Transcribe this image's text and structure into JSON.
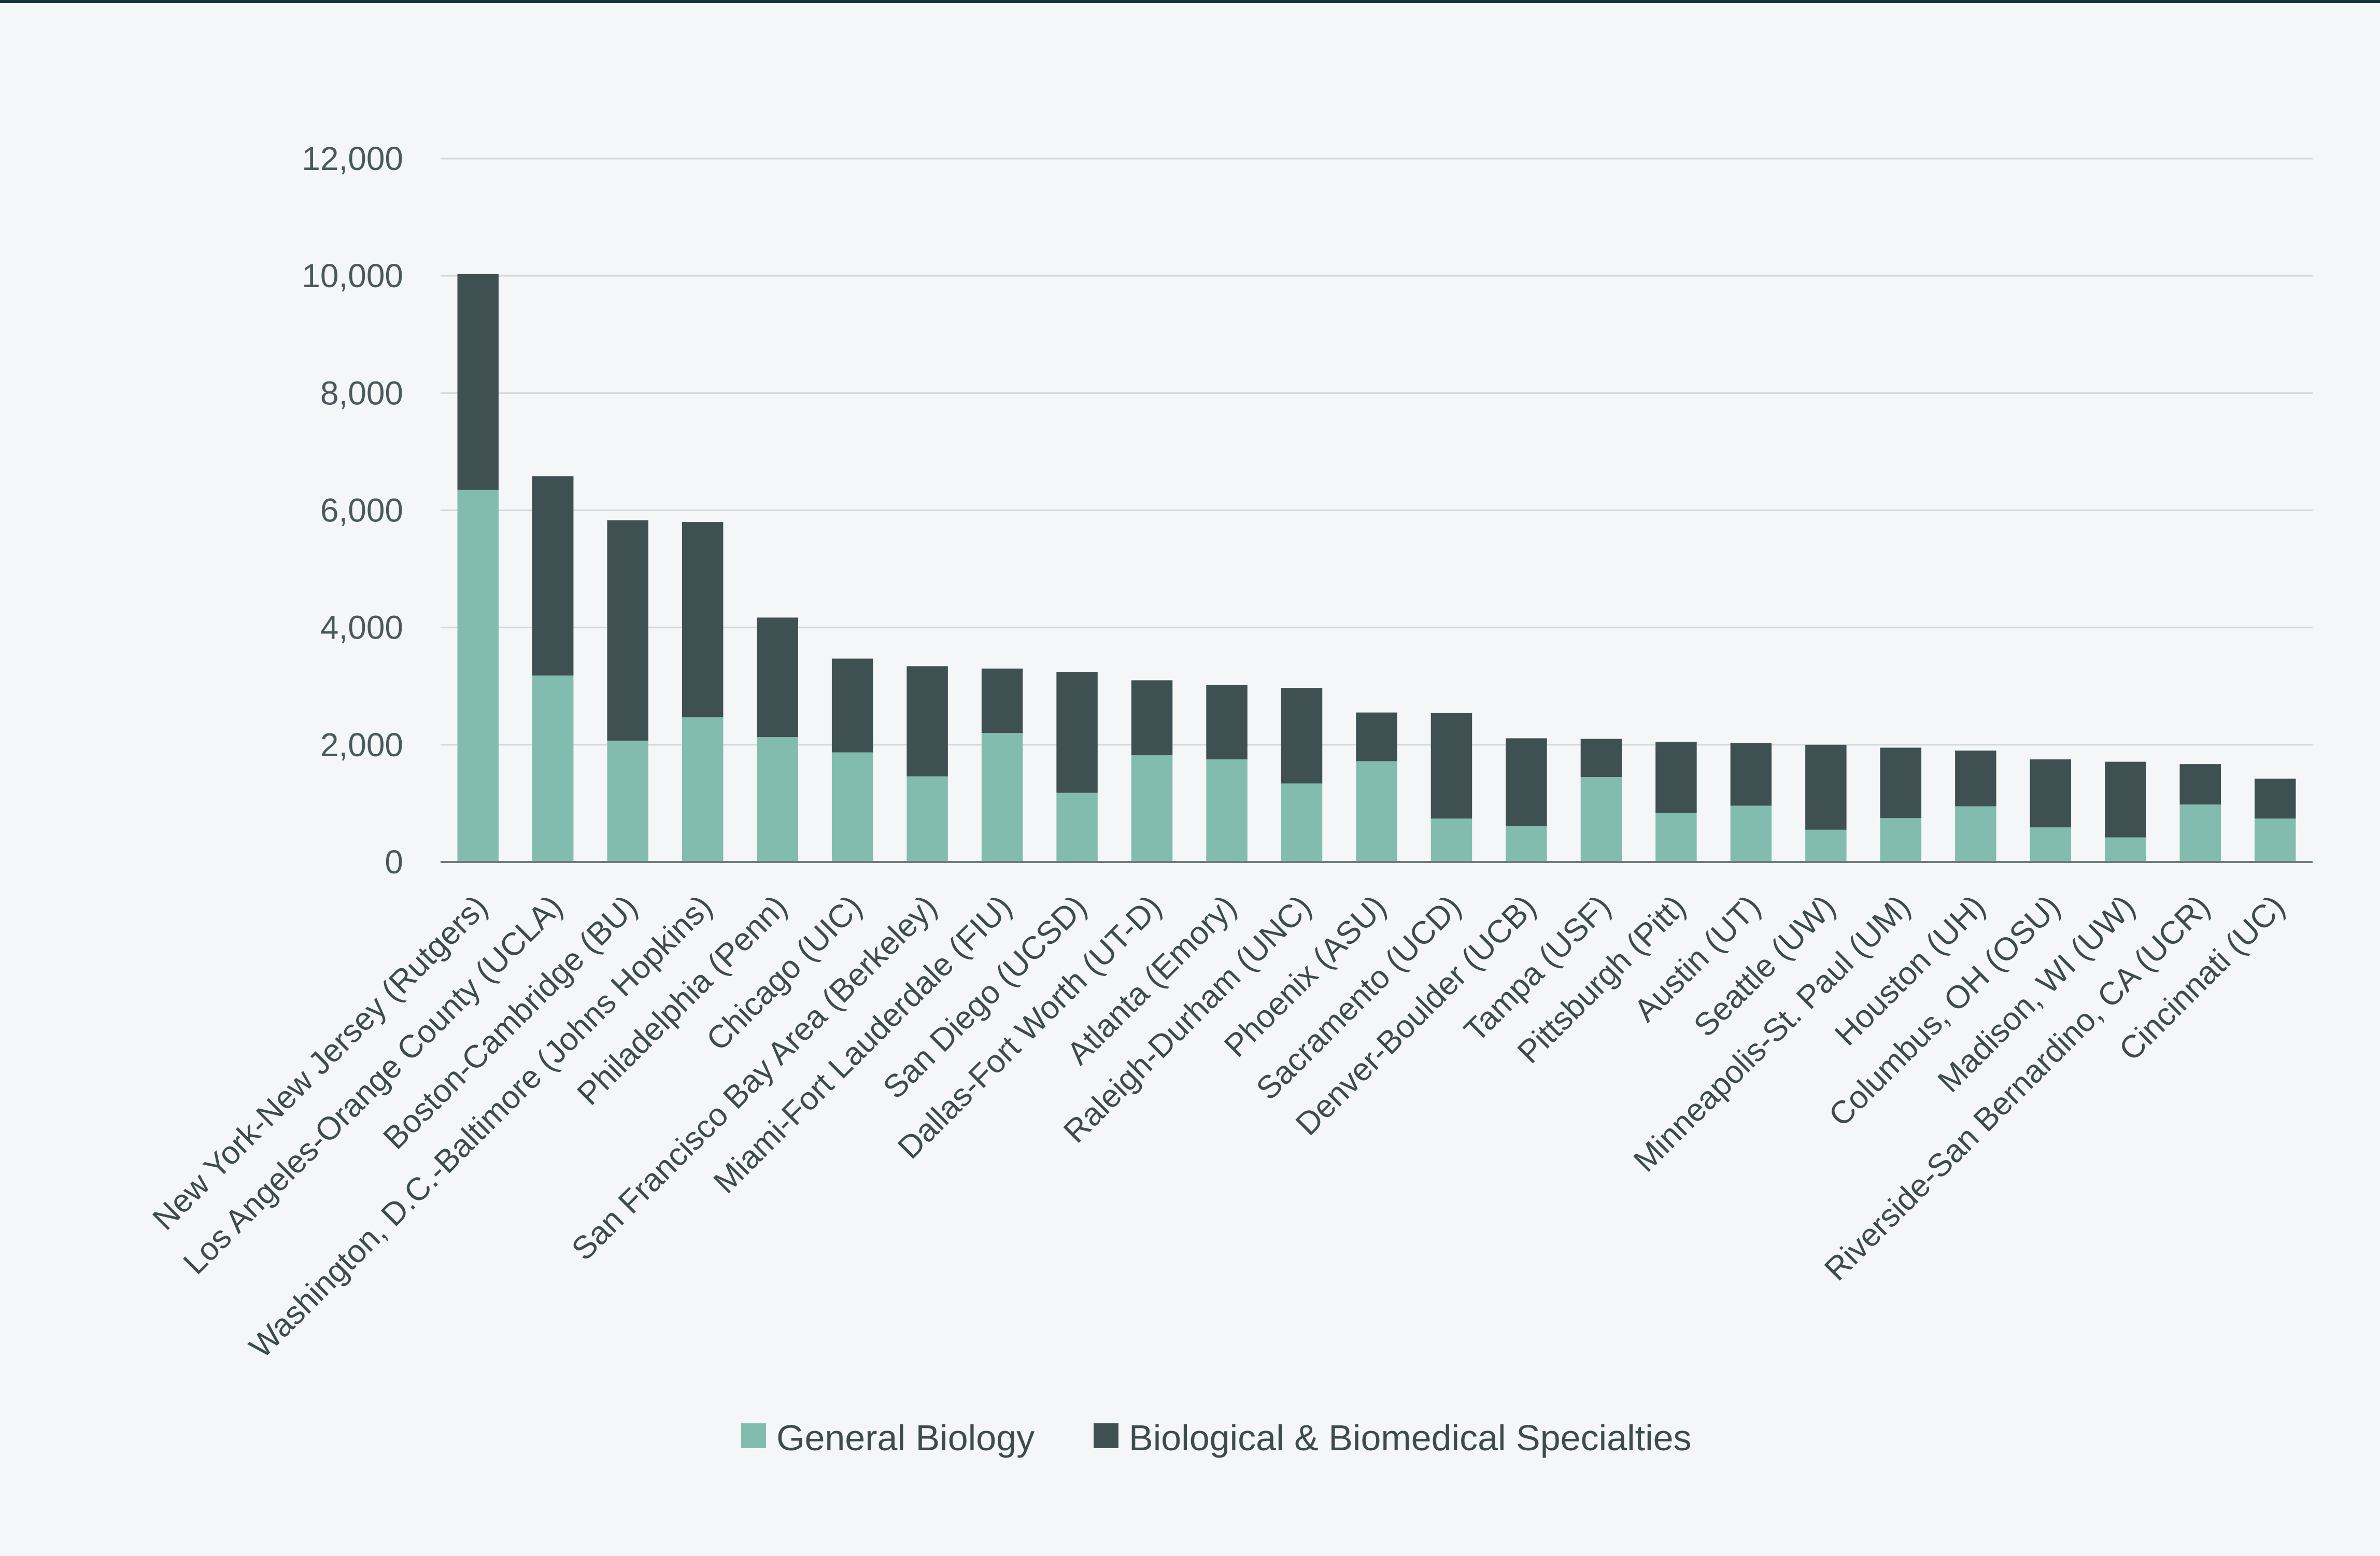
{
  "chart_data": {
    "type": "bar",
    "stacked": true,
    "categories": [
      "New York-New Jersey (Rutgers)",
      "Los Angeles-Orange County (UCLA)",
      "Boston-Cambridge (BU)",
      "Washington, D.C.-Baltimore (Johns Hopkins)",
      "Philadelphia (Penn)",
      "Chicago (UIC)",
      "San Francisco Bay Area (Berkeley)",
      "Miami-Fort Lauderdale (FIU)",
      "San Diego (UCSD)",
      "Dallas-Fort Worth (UT-D)",
      "Atlanta (Emory)",
      "Raleigh-Durham (UNC)",
      "Phoenix (ASU)",
      "Sacramento (UCD)",
      "Denver-Boulder (UCB)",
      "Tampa (USF)",
      "Pittsburgh (Pitt)",
      "Austin (UT)",
      "Seattle (UW)",
      "Minneapolis-St. Paul (UM)",
      "Houston (UH)",
      "Columbus, OH (OSU)",
      "Madison, WI (UW)",
      "Riverside-San Bernardino, CA (UCR)",
      "Cincinnati (UC)"
    ],
    "series": [
      {
        "name": "General Biology",
        "color": "#82bcae",
        "values": [
          6350,
          3180,
          2070,
          2470,
          2130,
          1870,
          1460,
          2200,
          1180,
          1820,
          1750,
          1340,
          1720,
          740,
          610,
          1450,
          840,
          960,
          550,
          750,
          950,
          590,
          420,
          980,
          740
        ]
      },
      {
        "name": "Biological & Biomedical Specialties",
        "color": "#3f5052",
        "values": [
          3680,
          3400,
          3760,
          3330,
          2040,
          1600,
          1880,
          1100,
          2060,
          1280,
          1270,
          1630,
          830,
          1800,
          1500,
          650,
          1210,
          1070,
          1450,
          1200,
          950,
          1160,
          1290,
          690,
          680
        ]
      }
    ],
    "y_ticks": [
      "0",
      "2,000",
      "4,000",
      "6,000",
      "8,000",
      "10,000",
      "12,000"
    ],
    "ylim": [
      0,
      12000
    ],
    "grid": true,
    "legend_position": "bottom-center"
  }
}
